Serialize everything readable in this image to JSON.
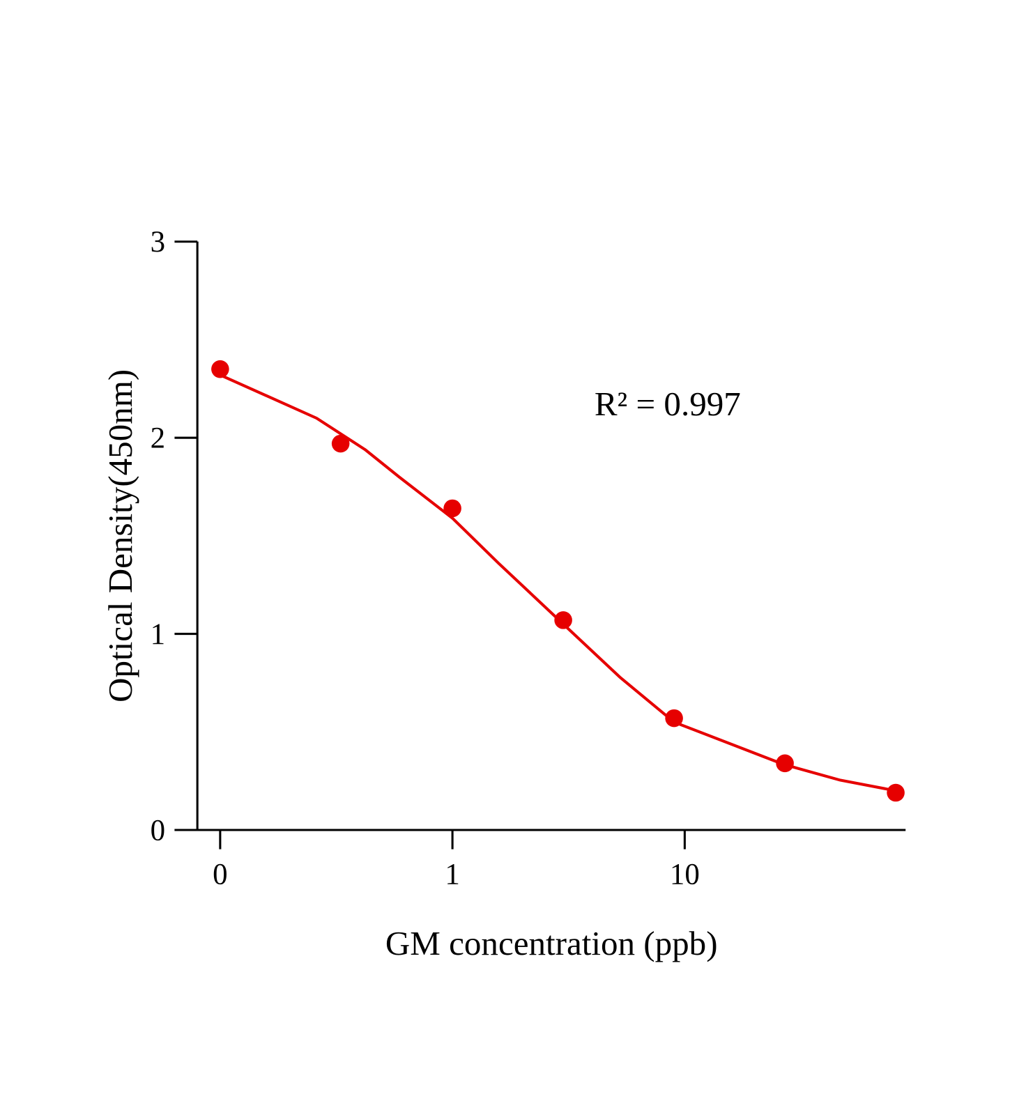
{
  "chart_data": {
    "type": "scatter",
    "title": "",
    "xlabel": "GM concentration (ppb)",
    "ylabel": "Optical Density(450nm)",
    "x_scale": "log (0 shown at one decade below 1)",
    "ylim": [
      0,
      3
    ],
    "grid": false,
    "x_ticks": [
      {
        "value": 0,
        "label": "0"
      },
      {
        "value": 1,
        "label": "1"
      },
      {
        "value": 10,
        "label": "10"
      }
    ],
    "y_ticks": [
      {
        "value": 0,
        "label": "0"
      },
      {
        "value": 1,
        "label": "1"
      },
      {
        "value": 2,
        "label": "2"
      },
      {
        "value": 3,
        "label": "3"
      }
    ],
    "annotation": "R² = 0.997",
    "color": "#e60000",
    "points": [
      {
        "x": 0,
        "y": 2.35
      },
      {
        "x": 0.33,
        "y": 1.97
      },
      {
        "x": 1,
        "y": 1.64
      },
      {
        "x": 3,
        "y": 1.07
      },
      {
        "x": 9,
        "y": 0.57
      },
      {
        "x": 27,
        "y": 0.34
      },
      {
        "x": 81,
        "y": 0.19
      }
    ],
    "fit_curve": [
      [
        0,
        2.32
      ],
      [
        0.26,
        2.1
      ],
      [
        0.42,
        1.94
      ],
      [
        0.59,
        1.8
      ],
      [
        1,
        1.59
      ],
      [
        1.58,
        1.36
      ],
      [
        3,
        1.05
      ],
      [
        5.25,
        0.78
      ],
      [
        9,
        0.55
      ],
      [
        26.7,
        0.334
      ],
      [
        46.8,
        0.254
      ],
      [
        81,
        0.2
      ]
    ]
  }
}
